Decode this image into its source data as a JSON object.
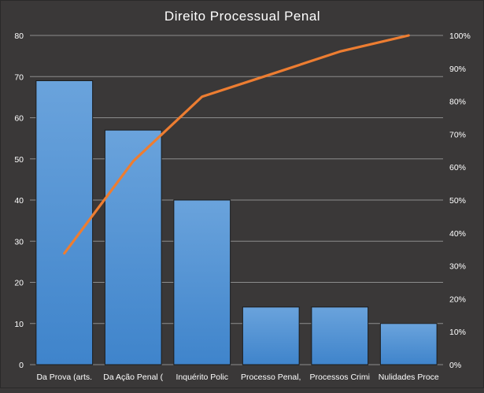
{
  "chart_data": {
    "type": "bar",
    "title": "Direito  Processual  Penal",
    "categories": [
      "Da Prova (arts.",
      "Da Ação Penal (",
      "Inquérito Polic",
      "Processo Penal,",
      "Processos Crimi",
      "Nulidades Proce"
    ],
    "series": [
      {
        "type": "bar",
        "axis": "left",
        "values": [
          69,
          57,
          40,
          14,
          14,
          10
        ]
      },
      {
        "type": "line",
        "axis": "right",
        "values": [
          33.8,
          61.8,
          81.4,
          88.2,
          95.1,
          100
        ]
      }
    ],
    "ylim": [
      0,
      80
    ],
    "y2lim": [
      0,
      100
    ],
    "y_ticks": [
      "0",
      "10",
      "20",
      "30",
      "40",
      "50",
      "60",
      "70",
      "80"
    ],
    "y2_ticks": [
      "0%",
      "10%",
      "20%",
      "30%",
      "40%",
      "50%",
      "60%",
      "70%",
      "80%",
      "90%",
      "100%"
    ],
    "grid": true,
    "colors": {
      "bar_top": "#6aa3dc",
      "bar_bottom": "#3f84cb",
      "line": "#ed7d31",
      "background": "#3a3838",
      "grid": "#8c8c8c"
    }
  }
}
